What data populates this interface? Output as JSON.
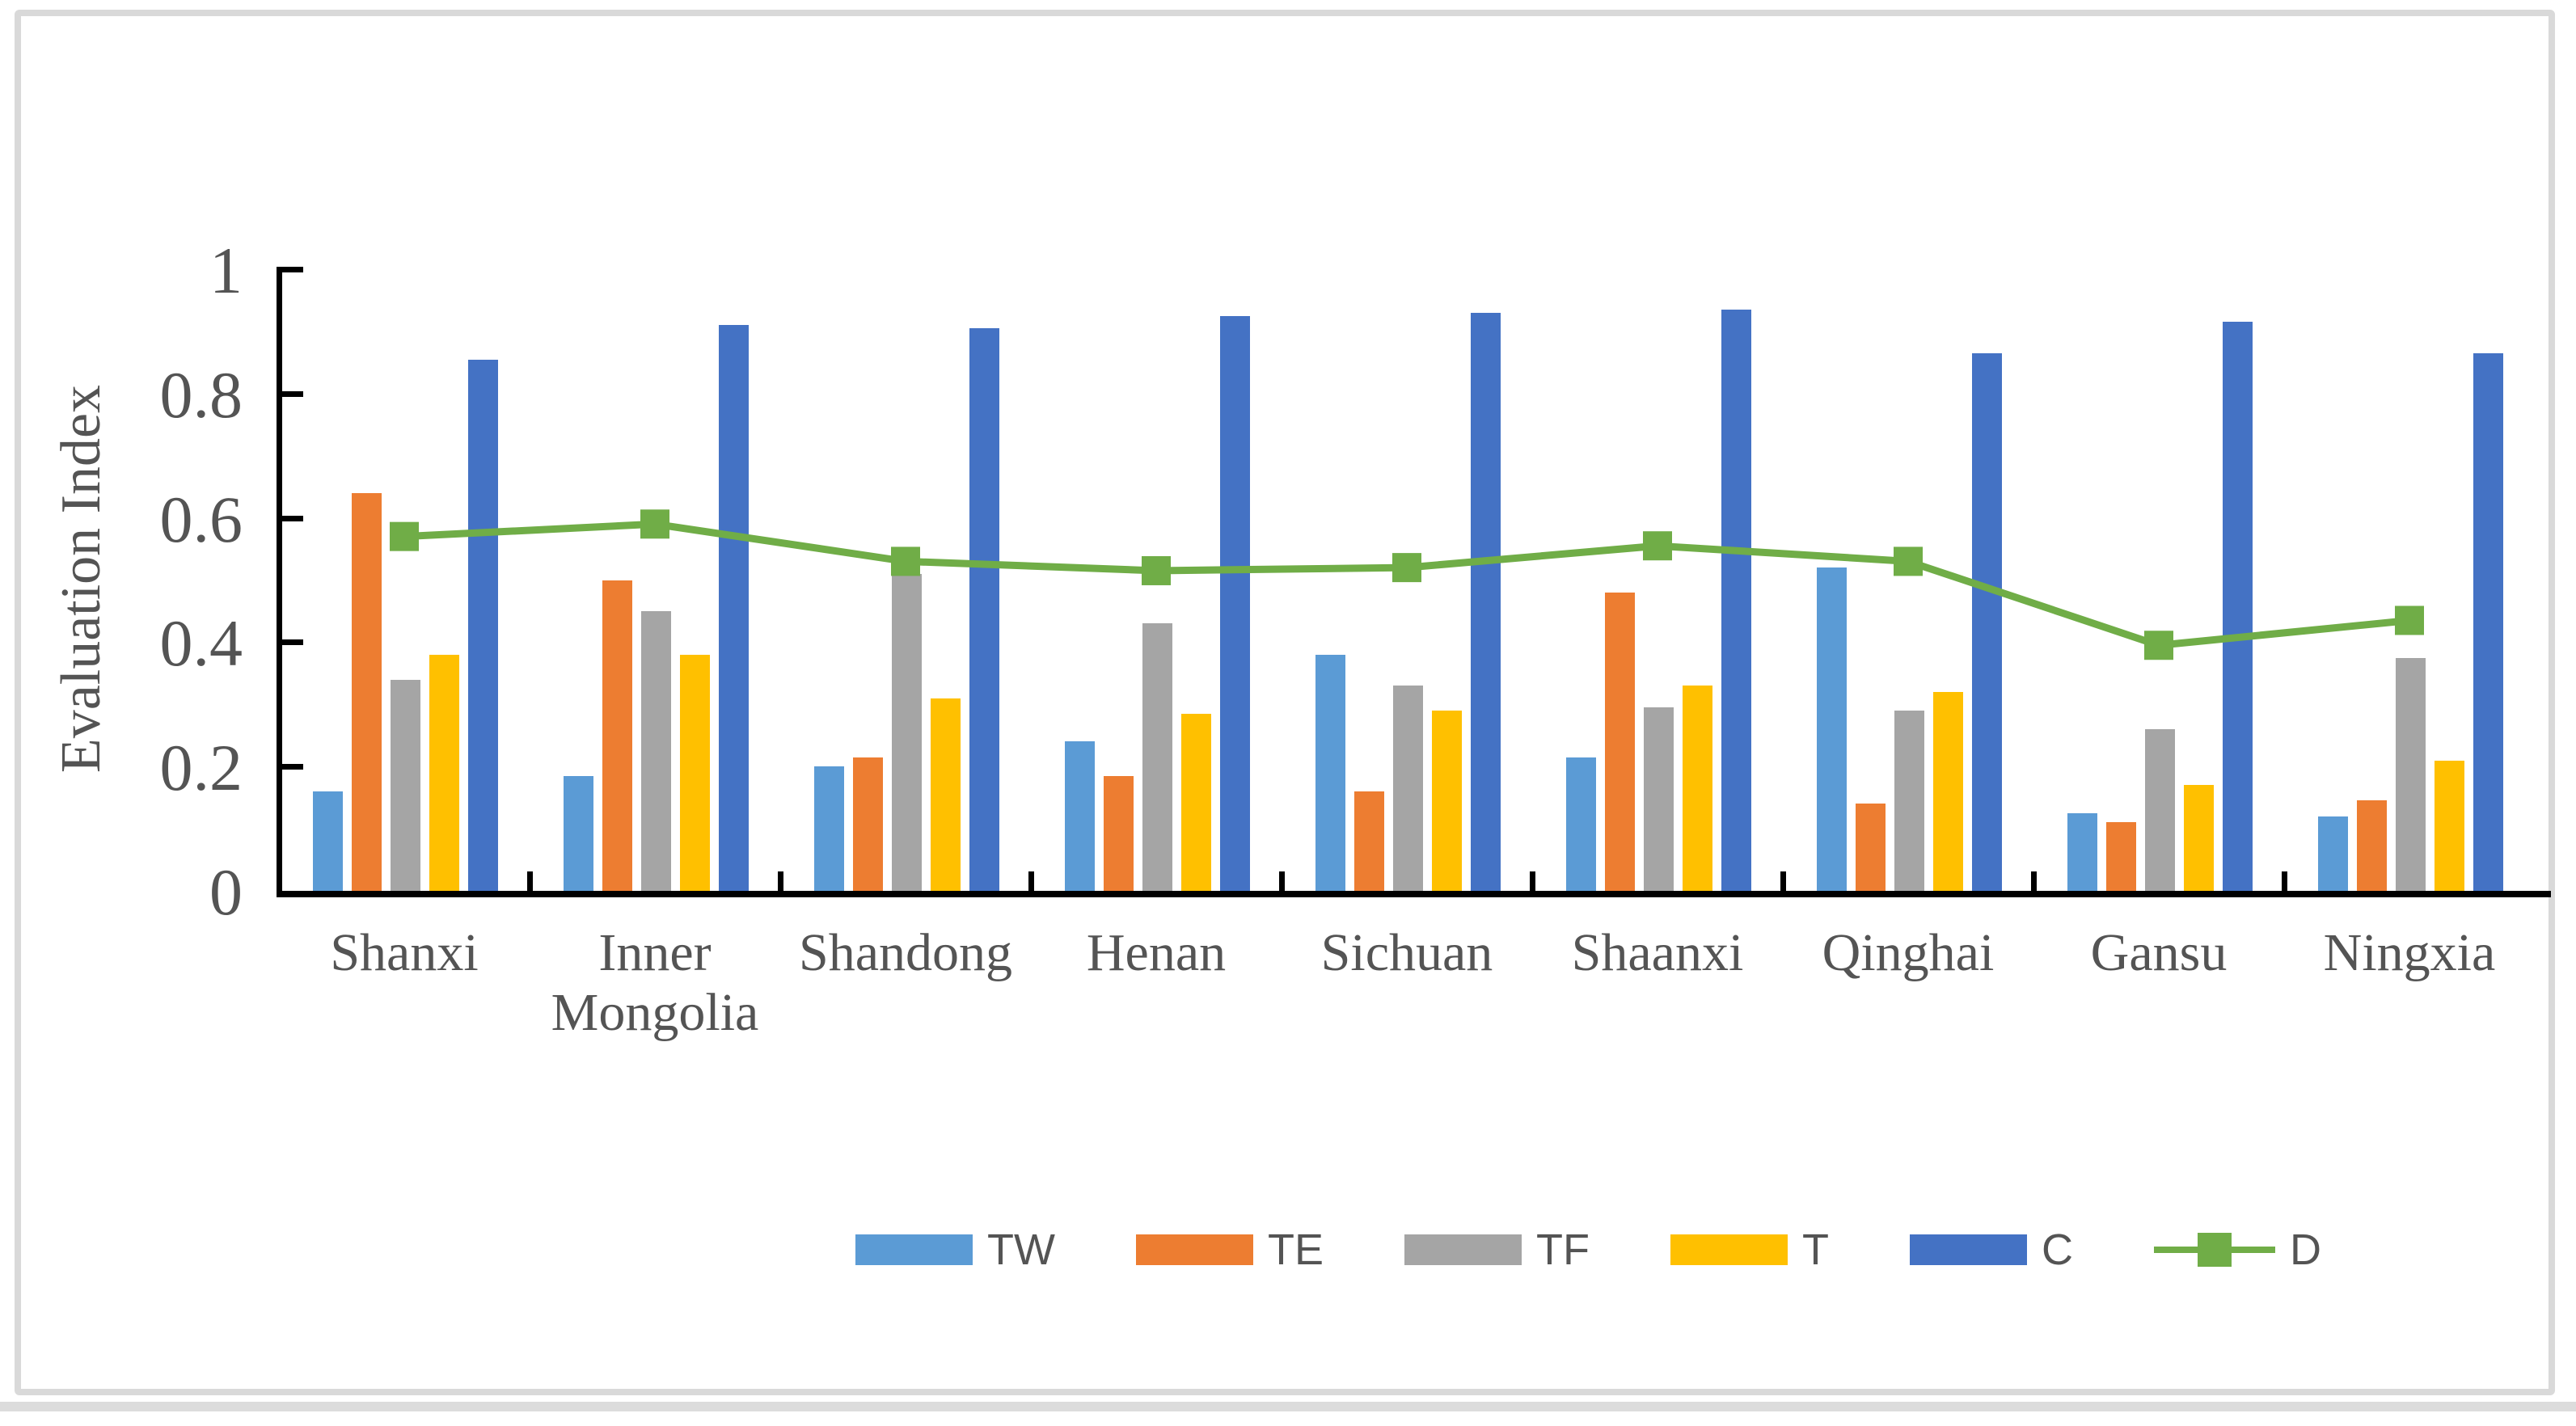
{
  "chart_data": {
    "type": "bar",
    "subtype": "grouped-bars-with-line-overlay",
    "title": "",
    "xlabel": "",
    "ylabel": "Evaluation Index",
    "ylim": [
      0,
      1
    ],
    "yticks": [
      0,
      0.2,
      0.4,
      0.6,
      0.8,
      1
    ],
    "ytick_labels": [
      "0",
      "0.2",
      "0.4",
      "0.6",
      "0.8",
      "1"
    ],
    "grid": false,
    "legend_position": "bottom",
    "categories": [
      "Shanxi",
      "Inner Mongolia",
      "Shandong",
      "Henan",
      "Sichuan",
      "Shaanxi",
      "Qinghai",
      "Gansu",
      "Ningxia"
    ],
    "series": [
      {
        "name": "TW",
        "type": "bar",
        "color": "#5B9BD5",
        "values": [
          0.16,
          0.185,
          0.2,
          0.24,
          0.38,
          0.215,
          0.52,
          0.125,
          0.12
        ]
      },
      {
        "name": "TE",
        "type": "bar",
        "color": "#ED7D31",
        "values": [
          0.64,
          0.5,
          0.215,
          0.185,
          0.16,
          0.48,
          0.14,
          0.11,
          0.145
        ]
      },
      {
        "name": "TF",
        "type": "bar",
        "color": "#A5A5A5",
        "values": [
          0.34,
          0.45,
          0.51,
          0.43,
          0.33,
          0.295,
          0.29,
          0.26,
          0.375
        ]
      },
      {
        "name": "T",
        "type": "bar",
        "color": "#FFC000",
        "values": [
          0.38,
          0.38,
          0.31,
          0.285,
          0.29,
          0.33,
          0.32,
          0.17,
          0.21
        ]
      },
      {
        "name": "C",
        "type": "bar",
        "color": "#4472C4",
        "values": [
          0.855,
          0.91,
          0.905,
          0.925,
          0.93,
          0.935,
          0.865,
          0.915,
          0.865
        ]
      },
      {
        "name": "D",
        "type": "line",
        "color": "#70AD47",
        "marker": "square",
        "values": [
          0.57,
          0.59,
          0.53,
          0.515,
          0.52,
          0.555,
          0.53,
          0.395,
          0.435
        ]
      }
    ],
    "colors": {
      "axis_line": "#000000",
      "text": "#545454",
      "frame_border": "#D9D9D9",
      "background": "#FFFFFF"
    }
  }
}
